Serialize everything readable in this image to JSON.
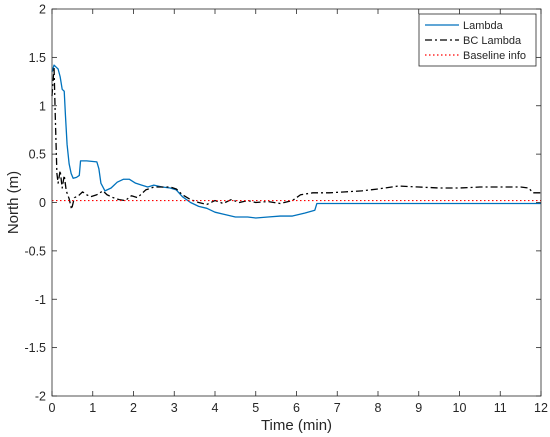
{
  "chart_data": {
    "type": "line",
    "title": "",
    "xlabel": "Time (min)",
    "ylabel": "North (m)",
    "xlim": [
      0,
      12
    ],
    "ylim": [
      -2,
      2
    ],
    "xticks": [
      0,
      1,
      2,
      3,
      4,
      5,
      6,
      7,
      8,
      9,
      10,
      11,
      12
    ],
    "yticks": [
      2,
      1.5,
      1,
      0.5,
      0,
      -0.5,
      -1,
      -1.5,
      -2
    ],
    "grid": false,
    "legend_position": "top-right",
    "series": [
      {
        "name": "Lambda",
        "color": "#0072BD",
        "style": "solid",
        "points": [
          [
            0,
            1.35
          ],
          [
            0.05,
            1.42
          ],
          [
            0.1,
            1.4
          ],
          [
            0.15,
            1.38
          ],
          [
            0.2,
            1.3
          ],
          [
            0.25,
            1.17
          ],
          [
            0.3,
            1.15
          ],
          [
            0.33,
            0.9
          ],
          [
            0.37,
            0.6
          ],
          [
            0.42,
            0.4
          ],
          [
            0.47,
            0.3
          ],
          [
            0.52,
            0.25
          ],
          [
            0.6,
            0.26
          ],
          [
            0.67,
            0.28
          ],
          [
            0.7,
            0.43
          ],
          [
            0.85,
            0.43
          ],
          [
            1.1,
            0.42
          ],
          [
            1.15,
            0.35
          ],
          [
            1.2,
            0.2
          ],
          [
            1.3,
            0.12
          ],
          [
            1.45,
            0.15
          ],
          [
            1.6,
            0.21
          ],
          [
            1.75,
            0.24
          ],
          [
            1.9,
            0.24
          ],
          [
            2.05,
            0.2
          ],
          [
            2.2,
            0.18
          ],
          [
            2.35,
            0.16
          ],
          [
            2.5,
            0.18
          ],
          [
            2.7,
            0.16
          ],
          [
            2.9,
            0.15
          ],
          [
            3.05,
            0.13
          ],
          [
            3.2,
            0.06
          ],
          [
            3.4,
            0.0
          ],
          [
            3.6,
            -0.04
          ],
          [
            3.8,
            -0.06
          ],
          [
            4.0,
            -0.1
          ],
          [
            4.2,
            -0.12
          ],
          [
            4.5,
            -0.15
          ],
          [
            4.8,
            -0.15
          ],
          [
            5.0,
            -0.16
          ],
          [
            5.3,
            -0.15
          ],
          [
            5.6,
            -0.14
          ],
          [
            5.9,
            -0.14
          ],
          [
            6.2,
            -0.11
          ],
          [
            6.45,
            -0.08
          ],
          [
            6.5,
            -0.01
          ],
          [
            7.0,
            -0.01
          ],
          [
            8.0,
            -0.01
          ],
          [
            9.0,
            -0.01
          ],
          [
            10.0,
            -0.01
          ],
          [
            11.0,
            -0.01
          ],
          [
            12.0,
            -0.01
          ]
        ]
      },
      {
        "name": "BC Lambda",
        "color": "#000000",
        "style": "dashdot",
        "points": [
          [
            0,
            1.1
          ],
          [
            0.05,
            1.4
          ],
          [
            0.08,
            0.9
          ],
          [
            0.12,
            0.3
          ],
          [
            0.15,
            0.2
          ],
          [
            0.2,
            0.33
          ],
          [
            0.25,
            0.15
          ],
          [
            0.3,
            0.28
          ],
          [
            0.35,
            0.12
          ],
          [
            0.42,
            0.04
          ],
          [
            0.48,
            -0.07
          ],
          [
            0.55,
            0.05
          ],
          [
            0.65,
            0.07
          ],
          [
            0.75,
            0.11
          ],
          [
            0.85,
            0.08
          ],
          [
            0.95,
            0.06
          ],
          [
            1.1,
            0.08
          ],
          [
            1.25,
            0.12
          ],
          [
            1.35,
            0.08
          ],
          [
            1.5,
            0.05
          ],
          [
            1.65,
            0.03
          ],
          [
            1.8,
            0.02
          ],
          [
            1.95,
            0.07
          ],
          [
            2.1,
            0.05
          ],
          [
            2.3,
            0.13
          ],
          [
            2.5,
            0.16
          ],
          [
            2.7,
            0.16
          ],
          [
            2.9,
            0.16
          ],
          [
            3.05,
            0.14
          ],
          [
            3.2,
            0.08
          ],
          [
            3.4,
            0.03
          ],
          [
            3.6,
            0.0
          ],
          [
            3.8,
            -0.02
          ],
          [
            4.0,
            0.02
          ],
          [
            4.2,
            -0.01
          ],
          [
            4.4,
            0.03
          ],
          [
            4.6,
            0.0
          ],
          [
            4.8,
            0.02
          ],
          [
            5.0,
            0.0
          ],
          [
            5.3,
            0.01
          ],
          [
            5.6,
            -0.01
          ],
          [
            5.9,
            0.02
          ],
          [
            6.1,
            0.08
          ],
          [
            6.4,
            0.1
          ],
          [
            6.8,
            0.1
          ],
          [
            7.2,
            0.11
          ],
          [
            7.6,
            0.12
          ],
          [
            8.0,
            0.14
          ],
          [
            8.5,
            0.17
          ],
          [
            9.0,
            0.16
          ],
          [
            9.5,
            0.15
          ],
          [
            10.0,
            0.15
          ],
          [
            10.5,
            0.16
          ],
          [
            11.0,
            0.16
          ],
          [
            11.5,
            0.16
          ],
          [
            11.7,
            0.15
          ],
          [
            11.8,
            0.1
          ],
          [
            12.0,
            0.1
          ]
        ]
      },
      {
        "name": "Baseline info",
        "color": "#FF0000",
        "style": "dotted",
        "points": [
          [
            0,
            0.02
          ],
          [
            12,
            0.02
          ]
        ]
      }
    ]
  }
}
